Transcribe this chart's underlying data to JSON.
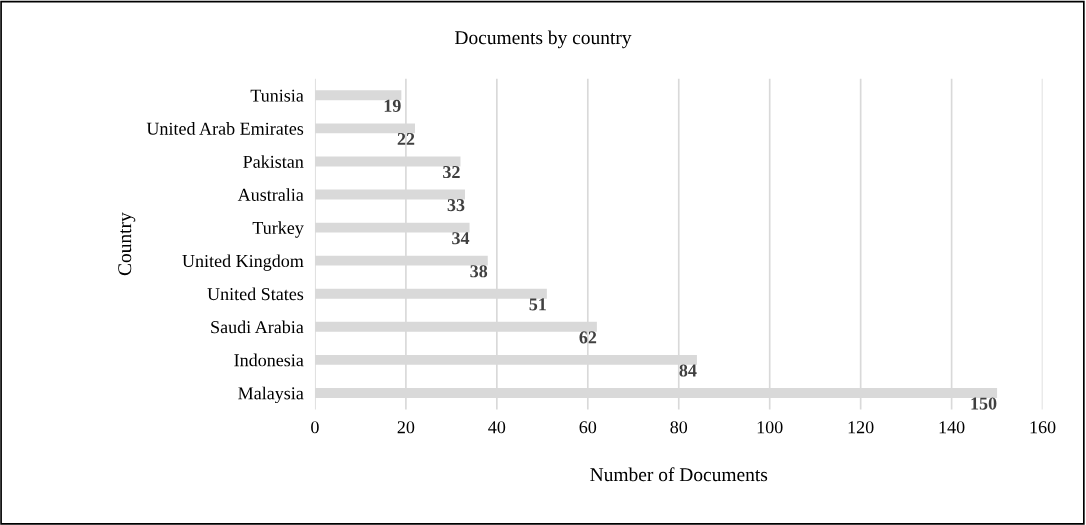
{
  "chart_data": {
    "type": "bar",
    "orientation": "horizontal",
    "title": "Documents by country",
    "xlabel": "Number of Documents",
    "ylabel": "Country",
    "categories": [
      "Tunisia",
      "United Arab Emirates",
      "Pakistan",
      "Australia",
      "Turkey",
      "United Kingdom",
      "United States",
      "Saudi Arabia",
      "Indonesia",
      "Malaysia"
    ],
    "values": [
      19,
      22,
      32,
      33,
      34,
      38,
      51,
      62,
      84,
      150
    ],
    "color": "#d9d9d9",
    "xlim": [
      0,
      160
    ],
    "xticks": [
      0,
      20,
      40,
      60,
      80,
      100,
      120,
      140,
      160
    ],
    "grid": "x",
    "data_labels": true,
    "legend": false
  }
}
